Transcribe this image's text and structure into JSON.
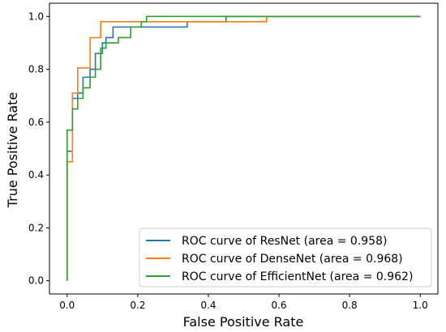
{
  "chart_data": {
    "type": "line",
    "title": "",
    "xlabel": "False Positive Rate",
    "ylabel": "True Positive Rate",
    "xlim": [
      -0.05,
      1.05
    ],
    "ylim": [
      -0.05,
      1.05
    ],
    "xticks": [
      "0.0",
      "0.2",
      "0.4",
      "0.6",
      "0.8",
      "1.0"
    ],
    "yticks": [
      "0.0",
      "0.2",
      "0.4",
      "0.6",
      "0.8",
      "1.0"
    ],
    "grid": false,
    "legend_position": "bottom-right",
    "series": [
      {
        "name": "ROC curve of ResNet (area = 0.958)",
        "color": "#1f77b4",
        "points": [
          [
            0,
            0
          ],
          [
            0,
            0.49
          ],
          [
            0.015,
            0.49
          ],
          [
            0.015,
            0.69
          ],
          [
            0.03,
            0.69
          ],
          [
            0.03,
            0.71
          ],
          [
            0.045,
            0.71
          ],
          [
            0.045,
            0.77
          ],
          [
            0.065,
            0.77
          ],
          [
            0.065,
            0.8
          ],
          [
            0.08,
            0.8
          ],
          [
            0.08,
            0.86
          ],
          [
            0.1,
            0.86
          ],
          [
            0.1,
            0.9
          ],
          [
            0.11,
            0.9
          ],
          [
            0.11,
            0.92
          ],
          [
            0.13,
            0.92
          ],
          [
            0.13,
            0.96
          ],
          [
            0.34,
            0.96
          ],
          [
            0.34,
            0.98
          ],
          [
            0.45,
            0.98
          ],
          [
            0.45,
            1.0
          ],
          [
            1.0,
            1.0
          ]
        ]
      },
      {
        "name": "ROC curve of DenseNet (area = 0.968)",
        "color": "#ff7f0e",
        "points": [
          [
            0,
            0
          ],
          [
            0,
            0.45
          ],
          [
            0.015,
            0.45
          ],
          [
            0.015,
            0.71
          ],
          [
            0.03,
            0.71
          ],
          [
            0.03,
            0.805
          ],
          [
            0.065,
            0.805
          ],
          [
            0.065,
            0.92
          ],
          [
            0.095,
            0.92
          ],
          [
            0.095,
            0.98
          ],
          [
            0.565,
            0.98
          ],
          [
            0.565,
            1.0
          ],
          [
            1.0,
            1.0
          ]
        ]
      },
      {
        "name": "ROC curve of EfficientNet (area = 0.962)",
        "color": "#2ca02c",
        "points": [
          [
            0,
            0
          ],
          [
            0,
            0.57
          ],
          [
            0.015,
            0.57
          ],
          [
            0.015,
            0.65
          ],
          [
            0.03,
            0.65
          ],
          [
            0.03,
            0.69
          ],
          [
            0.045,
            0.69
          ],
          [
            0.045,
            0.73
          ],
          [
            0.065,
            0.73
          ],
          [
            0.065,
            0.77
          ],
          [
            0.08,
            0.77
          ],
          [
            0.08,
            0.8
          ],
          [
            0.095,
            0.8
          ],
          [
            0.095,
            0.88
          ],
          [
            0.11,
            0.88
          ],
          [
            0.11,
            0.9
          ],
          [
            0.145,
            0.9
          ],
          [
            0.145,
            0.92
          ],
          [
            0.18,
            0.92
          ],
          [
            0.18,
            0.96
          ],
          [
            0.21,
            0.96
          ],
          [
            0.21,
            0.98
          ],
          [
            0.225,
            0.98
          ],
          [
            0.225,
            1.0
          ],
          [
            1.0,
            1.0
          ]
        ]
      }
    ]
  }
}
